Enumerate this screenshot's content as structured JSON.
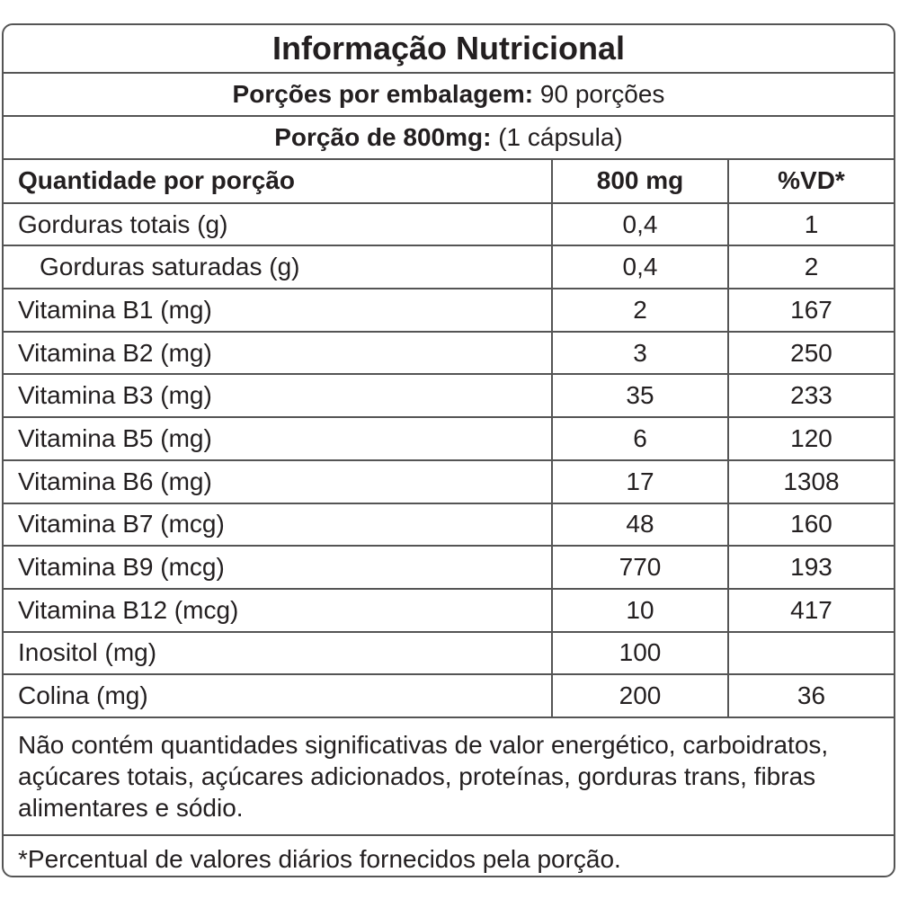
{
  "title": "Informação Nutricional",
  "servings": {
    "label": "Porções por embalagem:",
    "text": "90 porções"
  },
  "portion": {
    "label": "Porção de 800mg:",
    "text": "(1 cápsula)"
  },
  "table": {
    "header": [
      "Quantidade por porção",
      "800 mg",
      "%VD*"
    ],
    "rows": [
      [
        "Gorduras totais (g)",
        "0,4",
        "1"
      ],
      [
        "Gorduras saturadas (g)",
        "0,4",
        "2"
      ],
      [
        "Vitamina B1 (mg)",
        "2",
        "167"
      ],
      [
        "Vitamina B2 (mg)",
        "3",
        "250"
      ],
      [
        "Vitamina B3 (mg)",
        "35",
        "233"
      ],
      [
        "Vitamina B5 (mg)",
        "6",
        "120"
      ],
      [
        "Vitamina B6 (mg)",
        "17",
        "1308"
      ],
      [
        "Vitamina B7 (mcg)",
        "48",
        "160"
      ],
      [
        "Vitamina B9 (mcg)",
        "770",
        "193"
      ],
      [
        "Vitamina B12 (mcg)",
        "10",
        "417"
      ],
      [
        "Inositol (mg)",
        "100"
      ],
      [
        "Colina (mg)",
        "200",
        "36"
      ]
    ]
  },
  "note": "Não contém quantidades significativas de valor energético, carboidratos, açúcares totais, açúcares adicionados, proteínas, gorduras trans, fibras alimentares e sódio.",
  "footnote": "*Percentual de valores diários fornecidos pela porção."
}
